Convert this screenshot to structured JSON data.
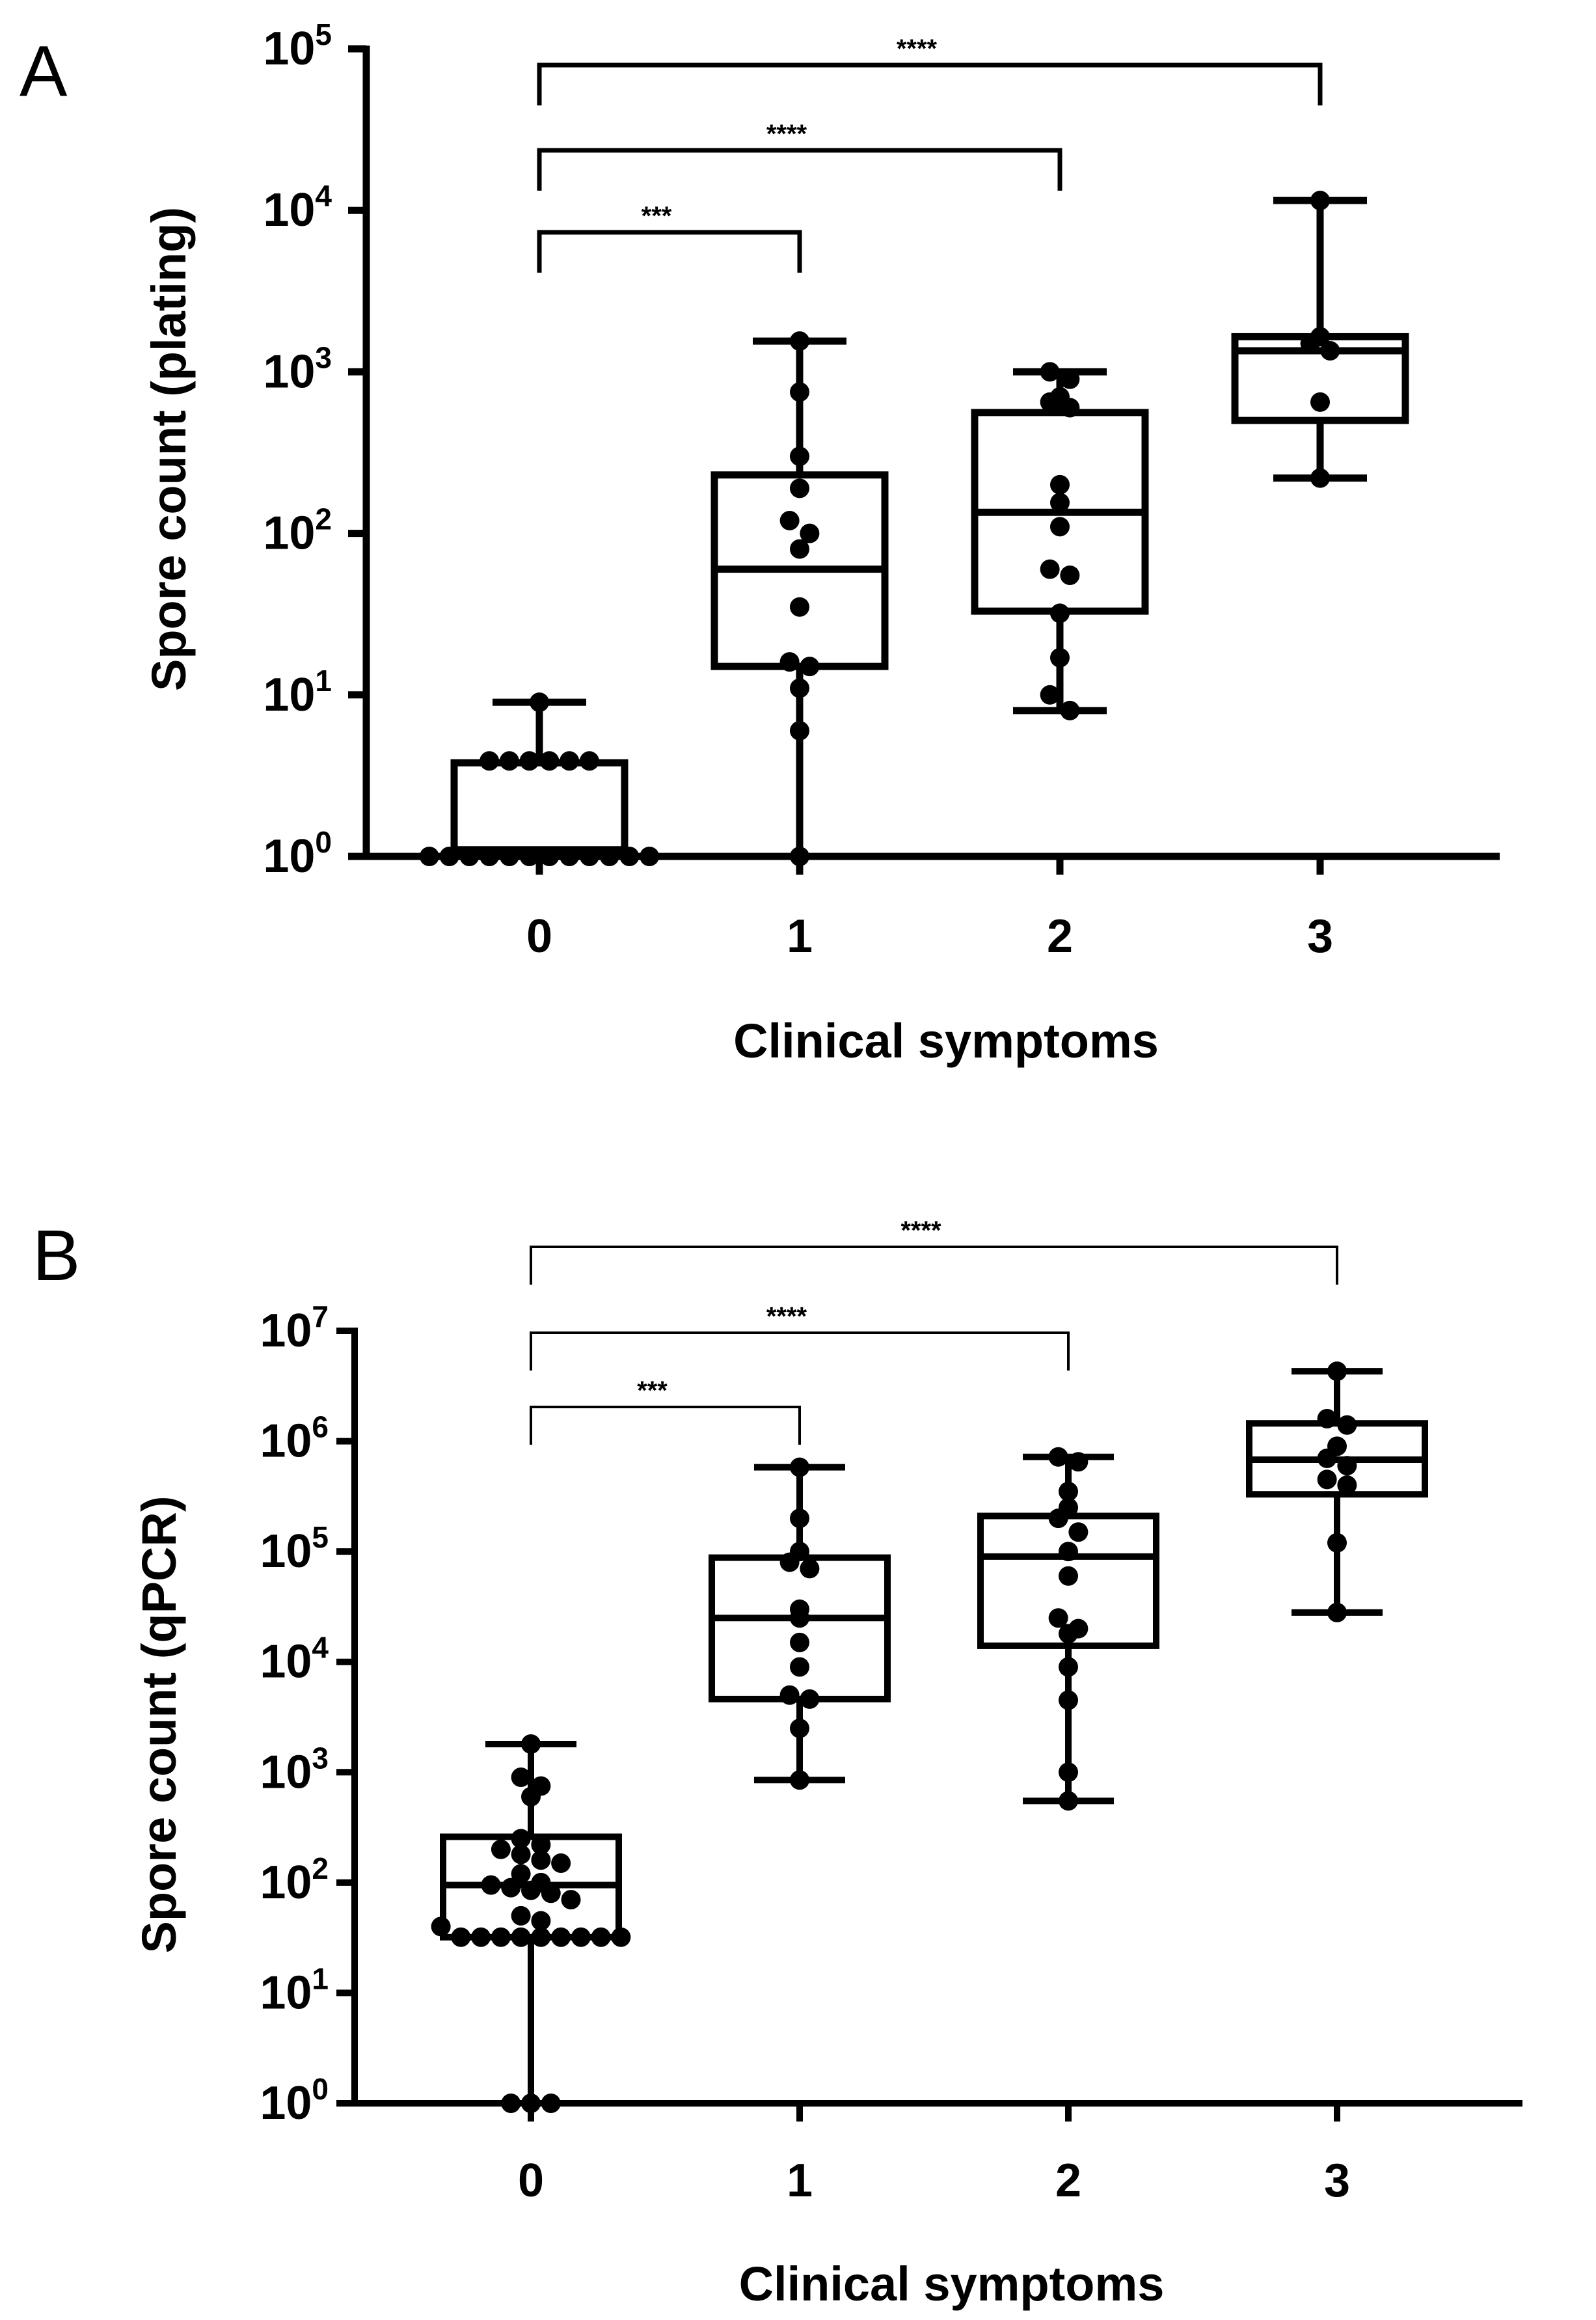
{
  "chart_data": [
    {
      "panel": "A",
      "type": "box",
      "scale": "log10",
      "xlabel": "Clinical symptoms",
      "ylabel": "Spore count (plating)",
      "categories": [
        "0",
        "1",
        "2",
        "3"
      ],
      "ylim": [
        1,
        100000
      ],
      "yticks": [
        {
          "base": "10",
          "exp": "0"
        },
        {
          "base": "10",
          "exp": "1"
        },
        {
          "base": "10",
          "exp": "2"
        },
        {
          "base": "10",
          "exp": "3"
        },
        {
          "base": "10",
          "exp": "4"
        },
        {
          "base": "10",
          "exp": "5"
        }
      ],
      "boxes": [
        {
          "category": "0",
          "min": 1,
          "q1": 1,
          "median": 1.1,
          "q3": 3.8,
          "max": 9
        },
        {
          "category": "1",
          "min": 1,
          "q1": 15,
          "median": 60,
          "q3": 230,
          "max": 1550
        },
        {
          "category": "2",
          "min": 8,
          "q1": 33,
          "median": 135,
          "q3": 560,
          "max": 1000
        },
        {
          "category": "3",
          "min": 220,
          "q1": 500,
          "median": 1350,
          "q3": 1650,
          "max": 11500
        }
      ],
      "points": [
        {
          "category": "0",
          "values": [
            9,
            3.9,
            3.9,
            3.9,
            3.9,
            3.9,
            3.9,
            1,
            1,
            1,
            1,
            1,
            1,
            1,
            1,
            1,
            1,
            1,
            1
          ]
        },
        {
          "category": "1",
          "values": [
            1550,
            750,
            300,
            190,
            120,
            100,
            80,
            35,
            16,
            15,
            11,
            6,
            1
          ]
        },
        {
          "category": "2",
          "values": [
            1000,
            900,
            700,
            650,
            600,
            200,
            155,
            110,
            60,
            55,
            32,
            17,
            10,
            8
          ]
        },
        {
          "category": "3",
          "values": [
            11500,
            1650,
            1500,
            1350,
            650,
            220
          ]
        }
      ],
      "significance": [
        {
          "from": "0",
          "to": "1",
          "label": "***"
        },
        {
          "from": "0",
          "to": "2",
          "label": "****"
        },
        {
          "from": "0",
          "to": "3",
          "label": "****"
        }
      ]
    },
    {
      "panel": "B",
      "type": "box",
      "scale": "log10",
      "xlabel": "Clinical symptoms",
      "ylabel": "Spore count (qPCR)",
      "categories": [
        "0",
        "1",
        "2",
        "3"
      ],
      "ylim": [
        1,
        10000000
      ],
      "yticks": [
        {
          "base": "10",
          "exp": "0"
        },
        {
          "base": "10",
          "exp": "1"
        },
        {
          "base": "10",
          "exp": "2"
        },
        {
          "base": "10",
          "exp": "3"
        },
        {
          "base": "10",
          "exp": "4"
        },
        {
          "base": "10",
          "exp": "5"
        },
        {
          "base": "10",
          "exp": "6"
        },
        {
          "base": "10",
          "exp": "7"
        }
      ],
      "boxes": [
        {
          "category": "0",
          "min": 1,
          "q1": 32,
          "median": 95,
          "q3": 260,
          "max": 1800
        },
        {
          "category": "1",
          "min": 850,
          "q1": 4600,
          "median": 25000,
          "q3": 88000,
          "max": 580000
        },
        {
          "category": "2",
          "min": 550,
          "q1": 14000,
          "median": 90000,
          "q3": 210000,
          "max": 720000
        },
        {
          "category": "3",
          "min": 28000,
          "q1": 330000,
          "median": 680000,
          "q3": 1450000,
          "max": 4300000
        }
      ],
      "points": [
        {
          "category": "0",
          "values": [
            1800,
            900,
            750,
            600,
            250,
            220,
            200,
            180,
            160,
            150,
            120,
            100,
            95,
            90,
            85,
            80,
            70,
            50,
            45,
            40,
            32,
            32,
            32,
            32,
            32,
            32,
            32,
            32,
            32,
            1,
            1,
            1
          ]
        },
        {
          "category": "1",
          "values": [
            580000,
            200000,
            100000,
            80000,
            70000,
            30000,
            25000,
            15000,
            9000,
            5000,
            4600,
            2500,
            850
          ]
        },
        {
          "category": "2",
          "values": [
            720000,
            650000,
            350000,
            250000,
            200000,
            150000,
            100000,
            60000,
            25000,
            20000,
            18000,
            9000,
            4500,
            1000,
            550
          ]
        },
        {
          "category": "3",
          "values": [
            4300000,
            1600000,
            1400000,
            900000,
            700000,
            600000,
            450000,
            400000,
            120000,
            28000
          ]
        }
      ],
      "significance": [
        {
          "from": "0",
          "to": "1",
          "label": "***"
        },
        {
          "from": "0",
          "to": "2",
          "label": "****"
        },
        {
          "from": "0",
          "to": "3",
          "label": "****"
        }
      ]
    }
  ],
  "panel_letters": {
    "a": "A",
    "b": "B"
  }
}
